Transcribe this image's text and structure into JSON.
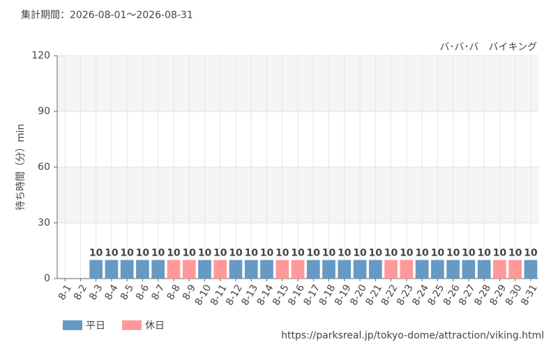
{
  "chart_data": {
    "type": "bar",
    "title": "集計期間：2026-08-01～2026-08-31",
    "subtitle": "バ･バ･バ　バイキング",
    "y_label": "待ち時間（分）min",
    "source": "https://parksreal.jp/tokyo-dome/attraction/viking.html",
    "categories": [
      "8-1",
      "8-2",
      "8-3",
      "8-4",
      "8-5",
      "8-6",
      "8-7",
      "8-8",
      "8-9",
      "8-10",
      "8-11",
      "8-12",
      "8-13",
      "8-14",
      "8-15",
      "8-16",
      "8-17",
      "8-18",
      "8-19",
      "8-20",
      "8-21",
      "8-22",
      "8-23",
      "8-24",
      "8-25",
      "8-26",
      "8-27",
      "8-28",
      "8-29",
      "8-30",
      "8-31"
    ],
    "category_colors": [
      "#f08c8c",
      "#f08c8c",
      "#444",
      "#444",
      "#444",
      "#444",
      "#444",
      "#f08c8c",
      "#f08c8c",
      "#444",
      "#f08c8c",
      "#444",
      "#444",
      "#444",
      "#f08c8c",
      "#f08c8c",
      "#444",
      "#444",
      "#444",
      "#444",
      "#444",
      "#f08c8c",
      "#f08c8c",
      "#444",
      "#444",
      "#444",
      "#444",
      "#444",
      "#f08c8c",
      "#f08c8c",
      "#444"
    ],
    "series": [
      {
        "name": "平日",
        "color": "#6699c4",
        "values": [
          null,
          null,
          10,
          10,
          10,
          10,
          10,
          null,
          null,
          10,
          null,
          10,
          10,
          10,
          null,
          null,
          10,
          10,
          10,
          10,
          10,
          null,
          null,
          10,
          10,
          10,
          10,
          10,
          null,
          null,
          10
        ]
      },
      {
        "name": "休日",
        "color": "#ff9999",
        "values": [
          null,
          null,
          null,
          null,
          null,
          null,
          null,
          10,
          10,
          null,
          10,
          null,
          null,
          null,
          10,
          10,
          null,
          null,
          null,
          null,
          null,
          10,
          10,
          null,
          null,
          null,
          null,
          null,
          10,
          10,
          null
        ]
      }
    ],
    "ylim": [
      0,
      120
    ],
    "yticks": [
      0,
      30,
      60,
      90,
      120
    ],
    "grid": true
  }
}
